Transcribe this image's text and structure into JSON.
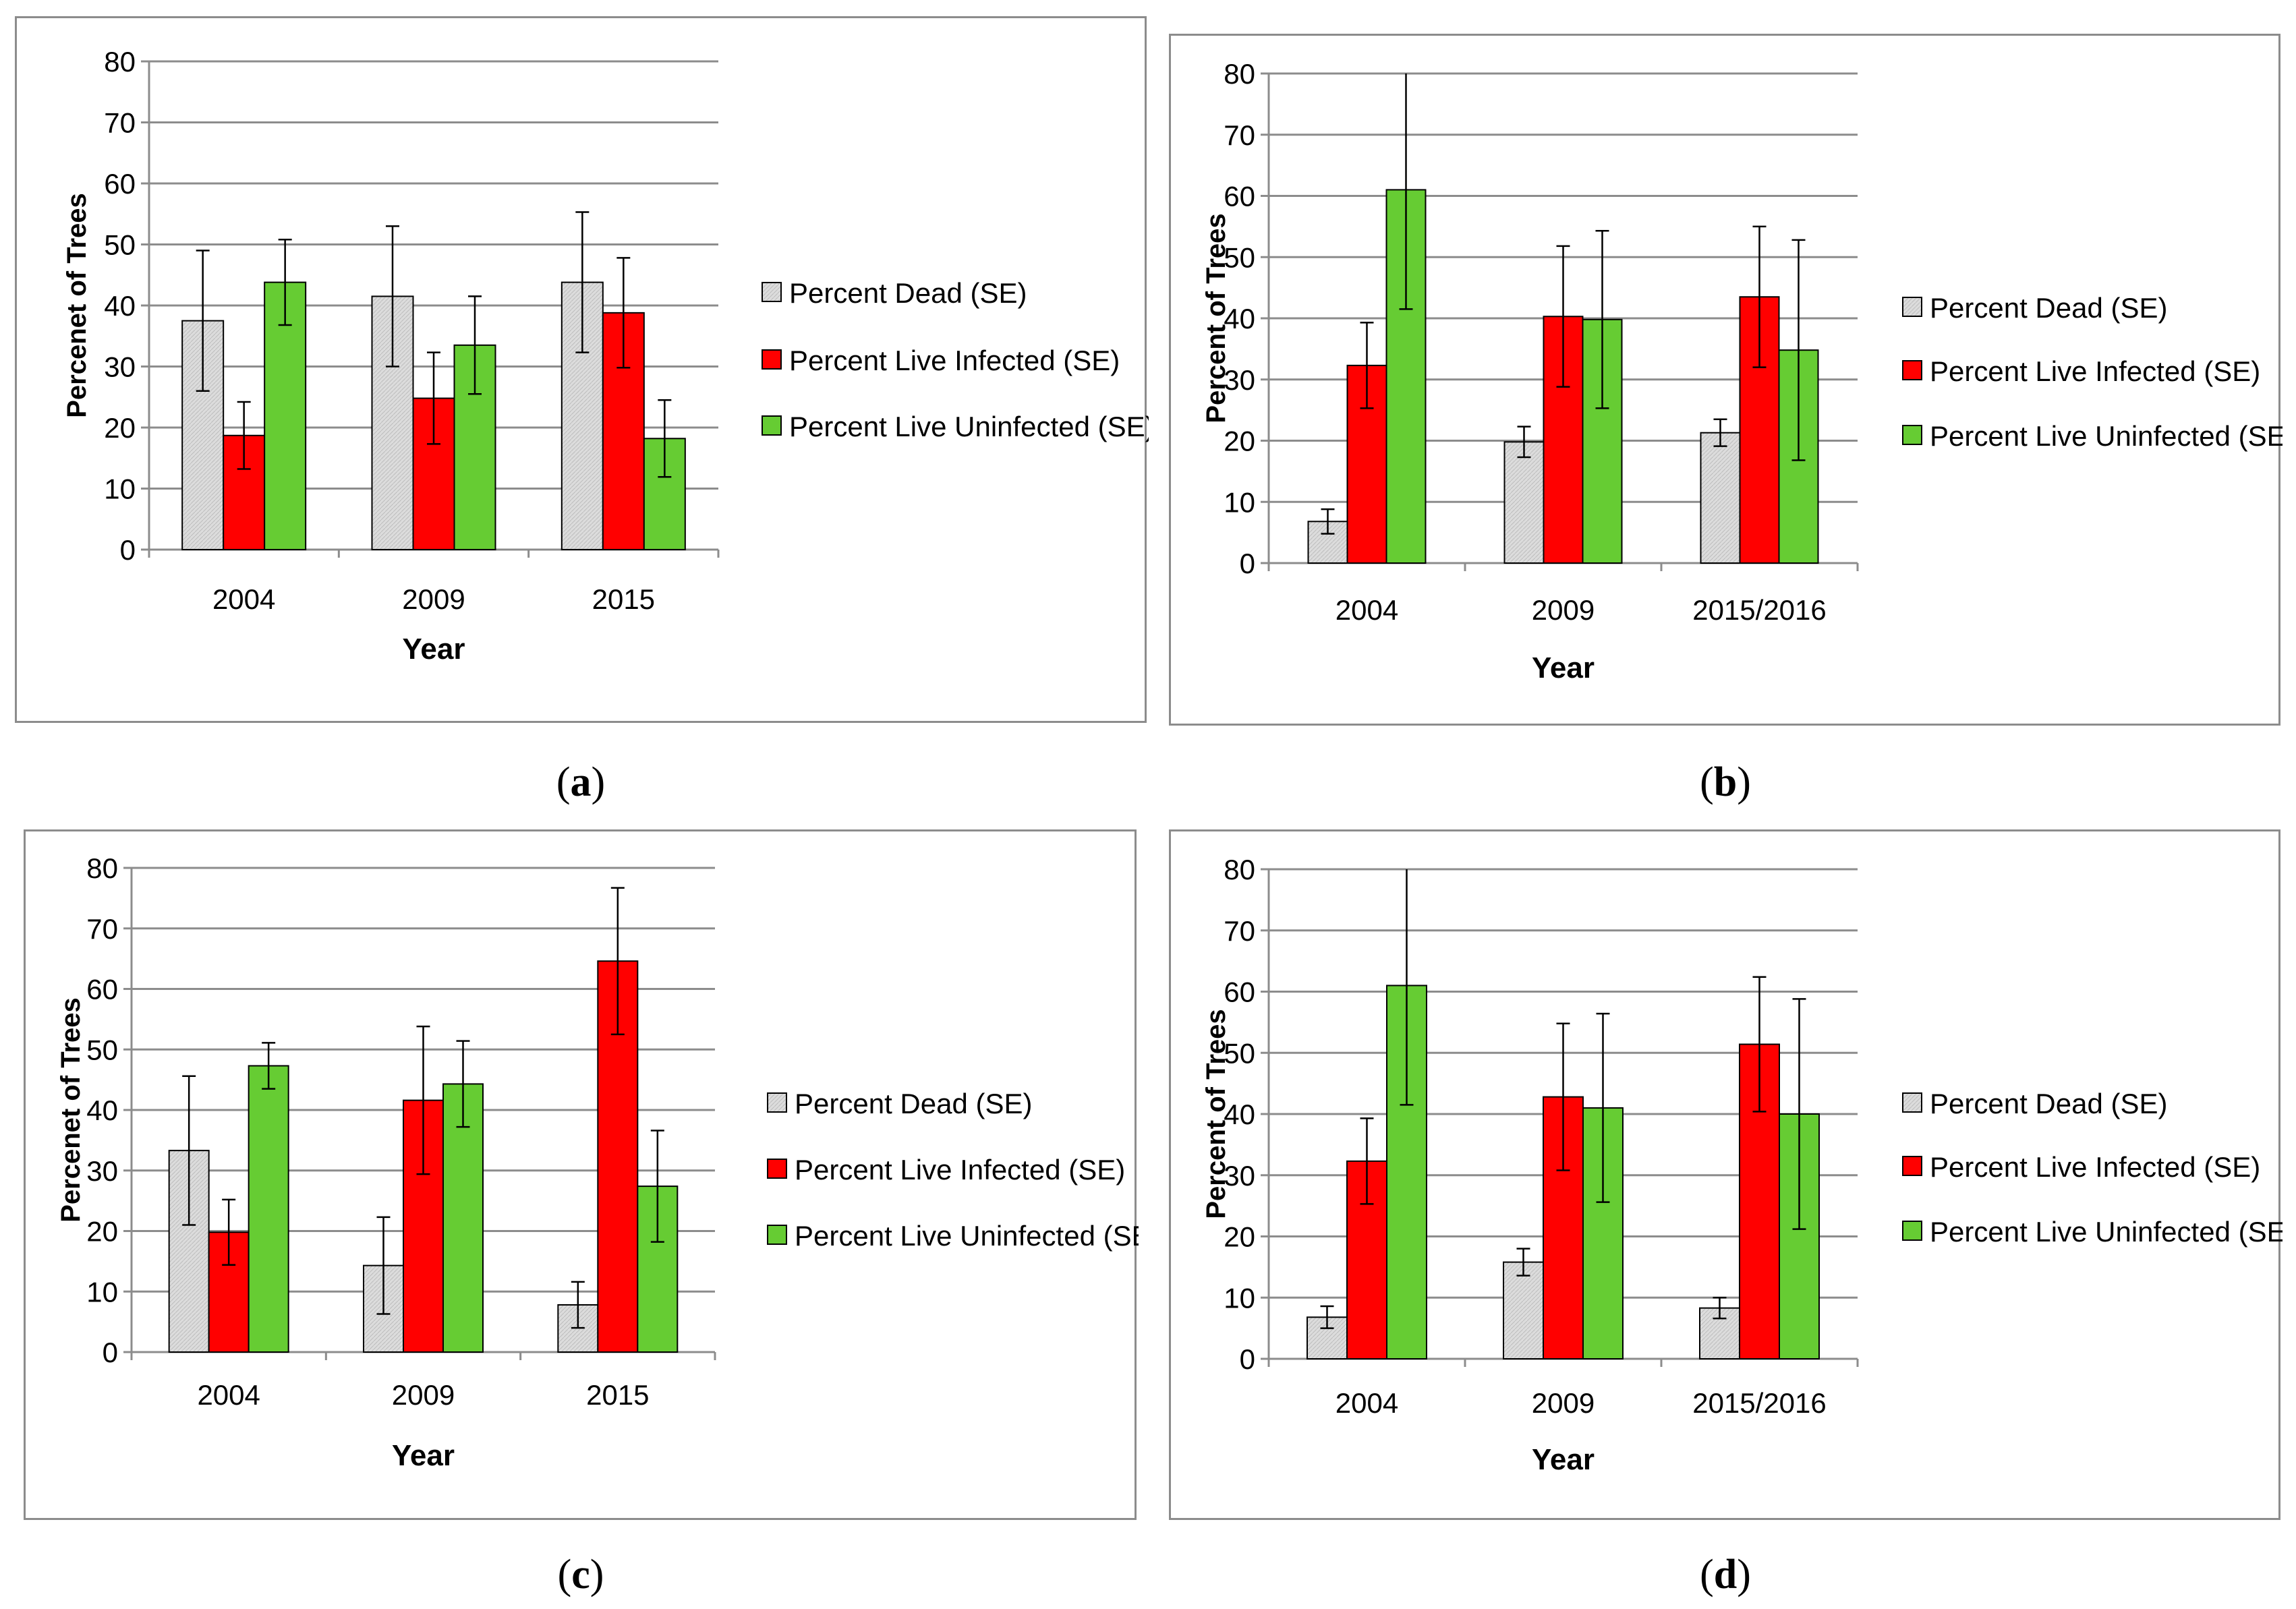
{
  "legend_labels": {
    "dead": "Percent Dead (SE)",
    "infected": "Percent Live Infected (SE)",
    "uninfected": "Percent Live Uninfected (SE)"
  },
  "colors": {
    "dead": "#dcdcdc",
    "infected": "#ff0000",
    "uninfected": "#66cc33",
    "grid": "#8c8c8c"
  },
  "captions": [
    {
      "open": "(",
      "letter": "a",
      "close": ")"
    },
    {
      "open": "(",
      "letter": "b",
      "close": ")"
    },
    {
      "open": "(",
      "letter": "c",
      "close": ")"
    },
    {
      "open": "(",
      "letter": "d",
      "close": ")"
    }
  ],
  "chart_data": [
    {
      "id": "a",
      "type": "bar",
      "title": "",
      "xlabel": "Year",
      "ylabel": "Percenet of Trees",
      "ylim": [
        0,
        80
      ],
      "yticks": [
        0,
        10,
        20,
        30,
        40,
        50,
        60,
        70,
        80
      ],
      "grid": true,
      "legend_position": "right",
      "categories": [
        "2004",
        "2009",
        "2015"
      ],
      "series": [
        {
          "name": "Percent Dead (SE)",
          "key": "dead",
          "values": [
            37.5,
            41.5,
            43.8
          ],
          "errors": [
            11.5,
            11.5,
            11.5
          ]
        },
        {
          "name": "Percent Live Infected (SE)",
          "key": "infected",
          "values": [
            18.7,
            24.8,
            38.8
          ],
          "errors": [
            5.5,
            7.5,
            9
          ]
        },
        {
          "name": "Percent Live Uninfected (SE)",
          "key": "uninfected",
          "values": [
            43.8,
            33.5,
            18.2
          ],
          "errors": [
            7,
            8,
            6.3
          ]
        }
      ]
    },
    {
      "id": "b",
      "type": "bar",
      "title": "",
      "xlabel": "Year",
      "ylabel": "Percent of Trees",
      "ylim": [
        0,
        80
      ],
      "yticks": [
        0,
        10,
        20,
        30,
        40,
        50,
        60,
        70,
        80
      ],
      "grid": true,
      "legend_position": "right",
      "categories": [
        "2004",
        "2009",
        "2015/2016"
      ],
      "series": [
        {
          "name": "Percent Dead (SE)",
          "key": "dead",
          "values": [
            6.8,
            19.8,
            21.3
          ],
          "errors": [
            2,
            2.5,
            2.2
          ]
        },
        {
          "name": "Percent Live Infected (SE)",
          "key": "infected",
          "values": [
            32.3,
            40.3,
            43.5
          ],
          "errors": [
            7,
            11.5,
            11.5
          ]
        },
        {
          "name": "Percent Live Uninfected (SE)",
          "key": "uninfected",
          "values": [
            61,
            39.8,
            34.8
          ],
          "errors": [
            19.5,
            14.5,
            18
          ]
        }
      ]
    },
    {
      "id": "c",
      "type": "bar",
      "title": "",
      "xlabel": "Year",
      "ylabel": "Percenet of Trees",
      "ylim": [
        0,
        80
      ],
      "yticks": [
        0,
        10,
        20,
        30,
        40,
        50,
        60,
        70,
        80
      ],
      "grid": true,
      "legend_position": "right",
      "categories": [
        "2004",
        "2009",
        "2015"
      ],
      "series": [
        {
          "name": "Percent Dead (SE)",
          "key": "dead",
          "values": [
            33.3,
            14.3,
            7.8
          ],
          "errors": [
            12.3,
            8,
            3.8
          ]
        },
        {
          "name": "Percent Live Infected (SE)",
          "key": "infected",
          "values": [
            19.8,
            41.6,
            64.6
          ],
          "errors": [
            5.4,
            12.2,
            12.1
          ]
        },
        {
          "name": "Percent Live Uninfected (SE)",
          "key": "uninfected",
          "values": [
            47.3,
            44.3,
            27.4
          ],
          "errors": [
            3.8,
            7.1,
            9.2
          ]
        }
      ]
    },
    {
      "id": "d",
      "type": "bar",
      "title": "",
      "xlabel": "Year",
      "ylabel": "Percent of Trees",
      "ylim": [
        0,
        80
      ],
      "yticks": [
        0,
        10,
        20,
        30,
        40,
        50,
        60,
        70,
        80
      ],
      "grid": true,
      "legend_position": "right",
      "categories": [
        "2004",
        "2009",
        "2015/2016"
      ],
      "series": [
        {
          "name": "Percent Dead (SE)",
          "key": "dead",
          "values": [
            6.8,
            15.8,
            8.3
          ],
          "errors": [
            1.8,
            2.2,
            1.7
          ]
        },
        {
          "name": "Percent Live Infected (SE)",
          "key": "infected",
          "values": [
            32.3,
            42.8,
            51.4
          ],
          "errors": [
            7,
            12,
            11
          ]
        },
        {
          "name": "Percent Live Uninfected (SE)",
          "key": "uninfected",
          "values": [
            61,
            41,
            40
          ],
          "errors": [
            19.5,
            15.4,
            18.8
          ]
        }
      ]
    }
  ]
}
